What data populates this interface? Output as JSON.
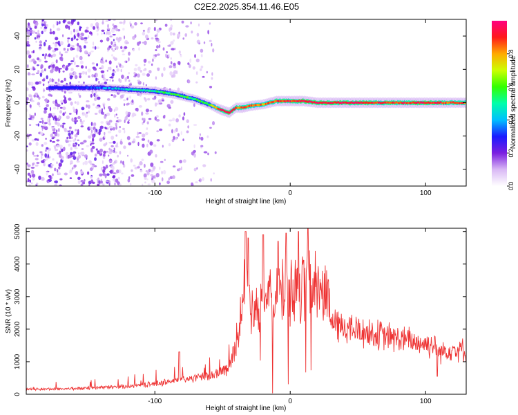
{
  "title": "C2E2.2025.354.11.46.E05",
  "chart_data": [
    {
      "type": "heatmap",
      "name": "spectrogram",
      "xlabel": "Height of straight line (km)",
      "ylabel": "Frequency (Hz)",
      "xlim": [
        -195,
        130
      ],
      "ylim": [
        -50,
        50
      ],
      "xticks": [
        -100,
        0,
        100
      ],
      "yticks": [
        -40,
        -20,
        0,
        20,
        40
      ],
      "colorbar": {
        "label": "Normalized spectral amplitude",
        "range": [
          0,
          1
        ],
        "ticks": [
          0.0,
          0.2,
          0.4,
          0.6,
          0.8
        ],
        "tick_labels": [
          "0.0",
          "0.2",
          "0.4",
          "0.6",
          "0.8"
        ]
      },
      "ridge": {
        "x": [
          -175,
          -160,
          -140,
          -120,
          -100,
          -85,
          -70,
          -60,
          -52,
          -45,
          -40,
          -35,
          -30,
          -20,
          -10,
          0,
          10,
          20,
          40,
          60,
          80,
          100,
          110,
          130
        ],
        "freq": [
          9,
          9,
          9,
          8,
          7,
          5,
          2,
          -1,
          -4,
          -6,
          -3,
          -3,
          -2,
          -1,
          1,
          1,
          1,
          0,
          0,
          0,
          0,
          0,
          0,
          0
        ],
        "amplitude": [
          0.12,
          0.25,
          0.35,
          0.45,
          0.5,
          0.6,
          0.55,
          0.6,
          0.9,
          0.95,
          0.85,
          0.9,
          0.85,
          0.8,
          0.9,
          0.9,
          0.95,
          0.95,
          0.95,
          0.9,
          0.9,
          0.95,
          0.9,
          0.85
        ]
      }
    },
    {
      "type": "line",
      "name": "snr",
      "xlabel": "Height of straight line (km)",
      "ylabel": "SNR (10 * v/v)",
      "xlim": [
        -195,
        130
      ],
      "ylim": [
        0,
        5100
      ],
      "xticks": [
        -100,
        0,
        100
      ],
      "yticks": [
        0,
        1000,
        2000,
        3000,
        4000,
        5000
      ],
      "color": "#ee3333",
      "envelope": {
        "x": [
          -195,
          -150,
          -120,
          -100,
          -80,
          -60,
          -45,
          -38,
          -33,
          -30,
          -25,
          -20,
          -15,
          -10,
          -5,
          0,
          5,
          10,
          15,
          20,
          25,
          28,
          30,
          40,
          60,
          80,
          100,
          108,
          110,
          120,
          130
        ],
        "y": [
          150,
          180,
          250,
          320,
          450,
          550,
          800,
          2000,
          3500,
          3000,
          2600,
          3000,
          2900,
          3000,
          3200,
          3100,
          3300,
          3400,
          3400,
          3450,
          3400,
          3000,
          2200,
          2050,
          1850,
          1700,
          1550,
          1500,
          1300,
          1400,
          1350
        ]
      },
      "spikes": {
        "x": [
          -33,
          -31,
          -20,
          -9,
          -3,
          6,
          13,
          -82
        ],
        "y": [
          5000,
          4800,
          4900,
          4700,
          4950,
          5000,
          5100,
          1300
        ]
      }
    }
  ]
}
